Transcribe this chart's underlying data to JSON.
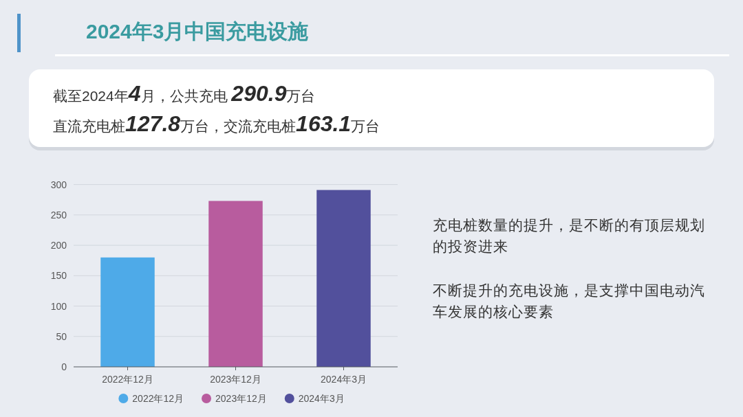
{
  "chart_data": {
    "type": "bar",
    "title": "2024年3月中国充电设施",
    "annotations": [
      "截至2024年**4**月，公共充电 **290.9**万台",
      "直流充电桩**127.8**万台，交流充电桩**163.1**万台",
      "充电桩数量的提升，是不断的有顶层规划的投资进来",
      "不断提升的充电设施，是支撑中国电动汽车发展的核心要素"
    ],
    "categories": [
      "2022年12月",
      "2023年12月",
      "2024年3月"
    ],
    "series": [
      {
        "name": "2022年12月",
        "color": "#4eaae8",
        "values": [
          180,
          null,
          null
        ]
      },
      {
        "name": "2023年12月",
        "color": "#b85c9e",
        "values": [
          null,
          273,
          null
        ]
      },
      {
        "name": "2024年3月",
        "color": "#52509c",
        "values": [
          null,
          null,
          291
        ]
      }
    ],
    "stacked": true,
    "ylim": [
      0,
      300
    ],
    "yticks": [
      0,
      50,
      100,
      150,
      200,
      250,
      300
    ],
    "grid": "y",
    "legend": "bottom"
  }
}
